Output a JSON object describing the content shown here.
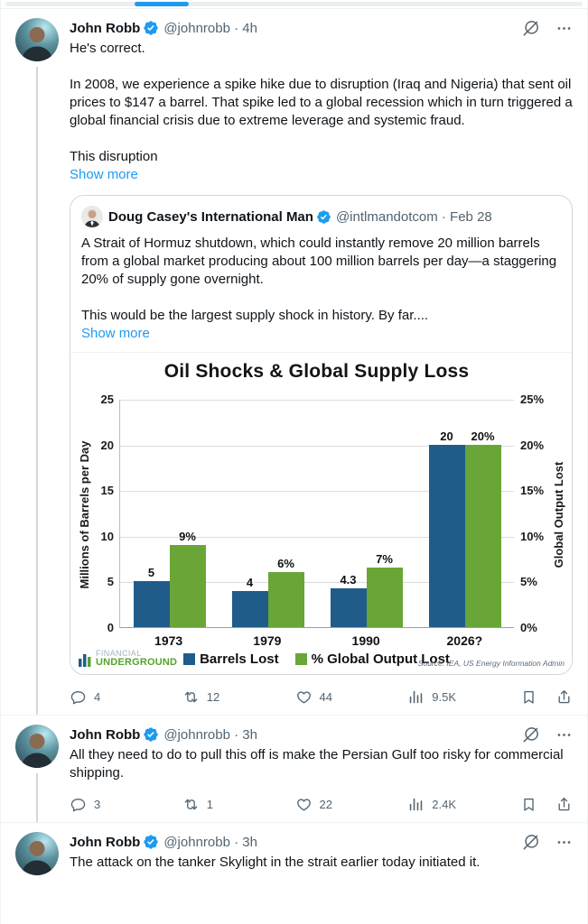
{
  "colors": {
    "accent": "#1d9bf0",
    "text_primary": "#0f1419",
    "text_secondary": "#536471",
    "divider": "#eff3f4",
    "card_border": "#cfd9de",
    "bar_blue": "#1f5c8a",
    "bar_green": "#69a637"
  },
  "icons": {
    "grok": "slashed-circle",
    "more": "three-dots",
    "verified": "blue-check-seal",
    "reply": "speech-bubble",
    "repost": "cycle-arrows",
    "like": "heart",
    "views": "bar-chart",
    "bookmark": "bookmark",
    "share": "arrow-up-from-tray"
  },
  "tweets": [
    {
      "author": "John Robb",
      "meta": "@johnrobb · 4h",
      "paragraphs": [
        "He's correct.",
        "In 2008, we experience a spike hike due to disruption (Iraq and Nigeria) that sent oil prices to $147 a barrel.  That spike led to a global recession which in turn triggered a global financial crisis due to extreme leverage and systemic fraud.",
        "This disruption"
      ],
      "show_more": "Show more",
      "engagement": {
        "replies": "4",
        "reposts": "12",
        "likes": "44",
        "views": "9.5K"
      }
    },
    {
      "author": "John Robb",
      "meta": "@johnrobb · 3h",
      "paragraphs": [
        "All they need to do to pull this off is make the Persian Gulf too risky for commercial shipping."
      ],
      "engagement": {
        "replies": "3",
        "reposts": "1",
        "likes": "22",
        "views": "2.4K"
      }
    },
    {
      "author": "John Robb",
      "meta": "@johnrobb · 3h",
      "paragraphs": [
        "The attack on the tanker Skylight in the strait earlier today initiated it."
      ]
    }
  ],
  "quote": {
    "author": "Doug Casey's International Man",
    "meta": "@intlmandotcom · Feb 28",
    "paragraphs": [
      "A Strait of Hormuz shutdown, which could instantly remove 20 million barrels from a global market producing about 100 million barrels per day—a staggering 20% of supply gone overnight.",
      "This would be the largest supply shock in history. By far...."
    ],
    "show_more": "Show more"
  },
  "chart_data": {
    "type": "bar",
    "title": "Oil Shocks & Global Supply Loss",
    "categories": [
      "1973",
      "1979",
      "1990",
      "2026?"
    ],
    "series": [
      {
        "name": "Barrels Lost",
        "axis": "left",
        "color": "#1f5c8a",
        "values": [
          5,
          4,
          4.3,
          20
        ],
        "labels": [
          "5",
          "4",
          "4.3",
          "20"
        ]
      },
      {
        "name": "% Global Output Lost",
        "axis": "right",
        "color": "#69a637",
        "values": [
          9,
          6,
          7,
          20
        ],
        "display_values": [
          9,
          6,
          6.5,
          20
        ],
        "labels": [
          "9%",
          "6%",
          "7%",
          "20%"
        ]
      }
    ],
    "ylabel_left": "Millions of Barrels per Day",
    "ylabel_right": "Global Output Lost",
    "ylim": [
      0,
      25
    ],
    "yticks_left": [
      "25",
      "20",
      "15",
      "10",
      "5",
      "0"
    ],
    "yticks_right": [
      "25%",
      "20%",
      "15%",
      "10%",
      "5%",
      "0%"
    ],
    "grid": true,
    "legend_position": "bottom",
    "source": "Source: IEA, US Energy Information Admin",
    "logo": {
      "line1": "FINANCIAL",
      "line2": "UNDERGROUND"
    }
  }
}
